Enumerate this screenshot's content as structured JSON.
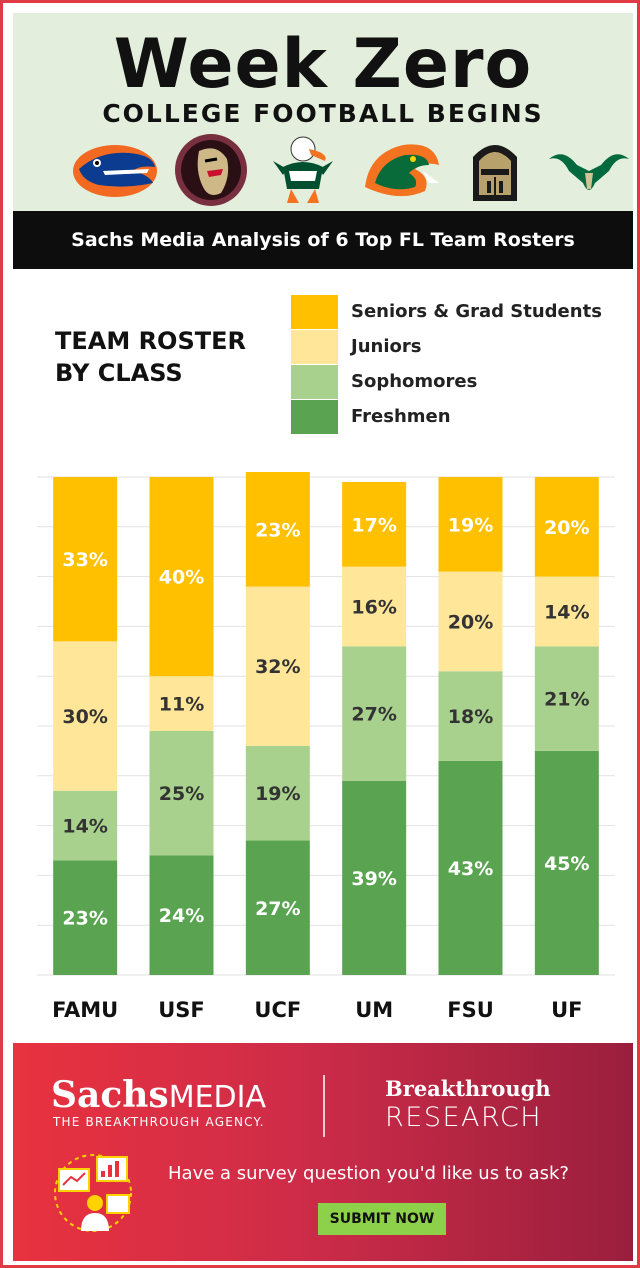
{
  "header": {
    "title": "Week Zero",
    "subtitle": "COLLEGE FOOTBALL BEGINS",
    "logos": [
      "gator-logo-icon",
      "seminole-logo-icon",
      "ibis-logo-icon",
      "rattler-logo-icon",
      "knight-logo-icon",
      "bull-logo-icon"
    ]
  },
  "banner": {
    "text": "Sachs Media Analysis of 6 Top FL Team Rosters"
  },
  "chart_data": {
    "type": "bar",
    "stacked": true,
    "title": "TEAM ROSTER BY CLASS",
    "categories": [
      "FAMU",
      "USF",
      "UCF",
      "UM",
      "FSU",
      "UF"
    ],
    "series": [
      {
        "name": "Freshmen",
        "values": [
          23,
          24,
          27,
          39,
          43,
          45
        ],
        "color": "#5aa451"
      },
      {
        "name": "Sophomores",
        "values": [
          14,
          25,
          19,
          27,
          18,
          21
        ],
        "color": "#a9d18e"
      },
      {
        "name": "Juniors",
        "values": [
          30,
          11,
          32,
          16,
          20,
          14
        ],
        "color": "#ffe699"
      },
      {
        "name": "Seniors & Grad Students",
        "values": [
          33,
          40,
          23,
          17,
          19,
          20
        ],
        "color": "#ffc000"
      }
    ],
    "value_suffix": "%",
    "ylim": [
      0,
      100
    ],
    "grid": true,
    "legend": [
      "Seniors & Grad Students",
      "Juniors",
      "Sophomores",
      "Freshmen"
    ],
    "legend_placement": "top-right"
  },
  "footer": {
    "brand_primary_bold": "Sachs",
    "brand_primary_light": "MEDIA",
    "brand_primary_tagline": "THE BREAKTHROUGH AGENCY.",
    "brand_secondary_top": "Breakthrough",
    "brand_secondary_bottom": "RESEARCH",
    "survey_question": "Have a survey question you'd like us to ask?",
    "submit_label": "SUBMIT NOW",
    "submit_color": "#8dd14a"
  },
  "colors": {
    "border": "#e03a44",
    "header_bg": "#e3efdc",
    "banner_bg": "#0d0d0d"
  }
}
